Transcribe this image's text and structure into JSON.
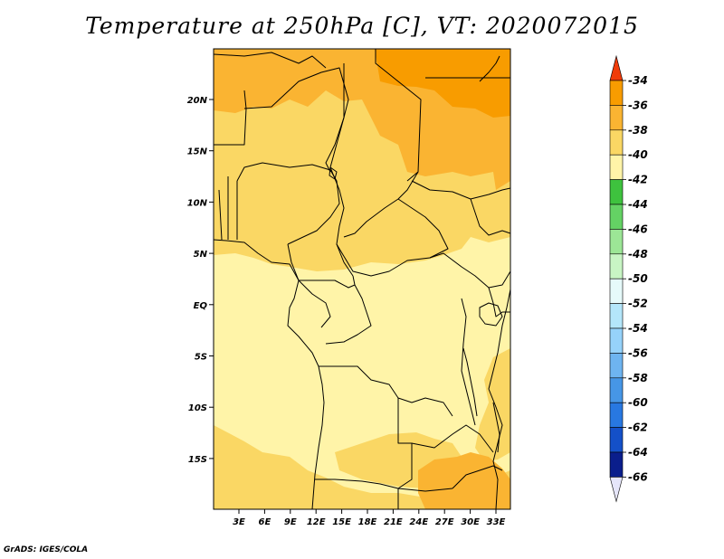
{
  "title": "Temperature at 250hPa [C], VT: 2020072015",
  "credit": "GrADS: IGES/COLA",
  "map": {
    "lat_ticks": [
      "20N",
      "15N",
      "10N",
      "5N",
      "EQ",
      "5S",
      "10S",
      "15S"
    ],
    "lon_ticks": [
      "3E",
      "6E",
      "9E",
      "12E",
      "15E",
      "18E",
      "21E",
      "24E",
      "27E",
      "30E",
      "33E"
    ]
  },
  "colorbar": {
    "labels": [
      "-34",
      "-36",
      "-38",
      "-40",
      "-42",
      "-44",
      "-46",
      "-48",
      "-50",
      "-52",
      "-54",
      "-56",
      "-58",
      "-60",
      "-62",
      "-64",
      "-66"
    ],
    "colors": [
      "#f86400",
      "#f89c00",
      "#fab432",
      "#fad764",
      "#fff4a8",
      "#3ec23e",
      "#64d264",
      "#9ce696",
      "#c8f5c4",
      "#e6fafa",
      "#b4e6fa",
      "#96d2fa",
      "#6eb4f0",
      "#4696e6",
      "#2878e1",
      "#1450c8",
      "#0a1e8c",
      "#140a64"
    ],
    "top_arrow_color": "#f03c0a",
    "bottom_arrow_color": "#e6e6fa"
  }
}
